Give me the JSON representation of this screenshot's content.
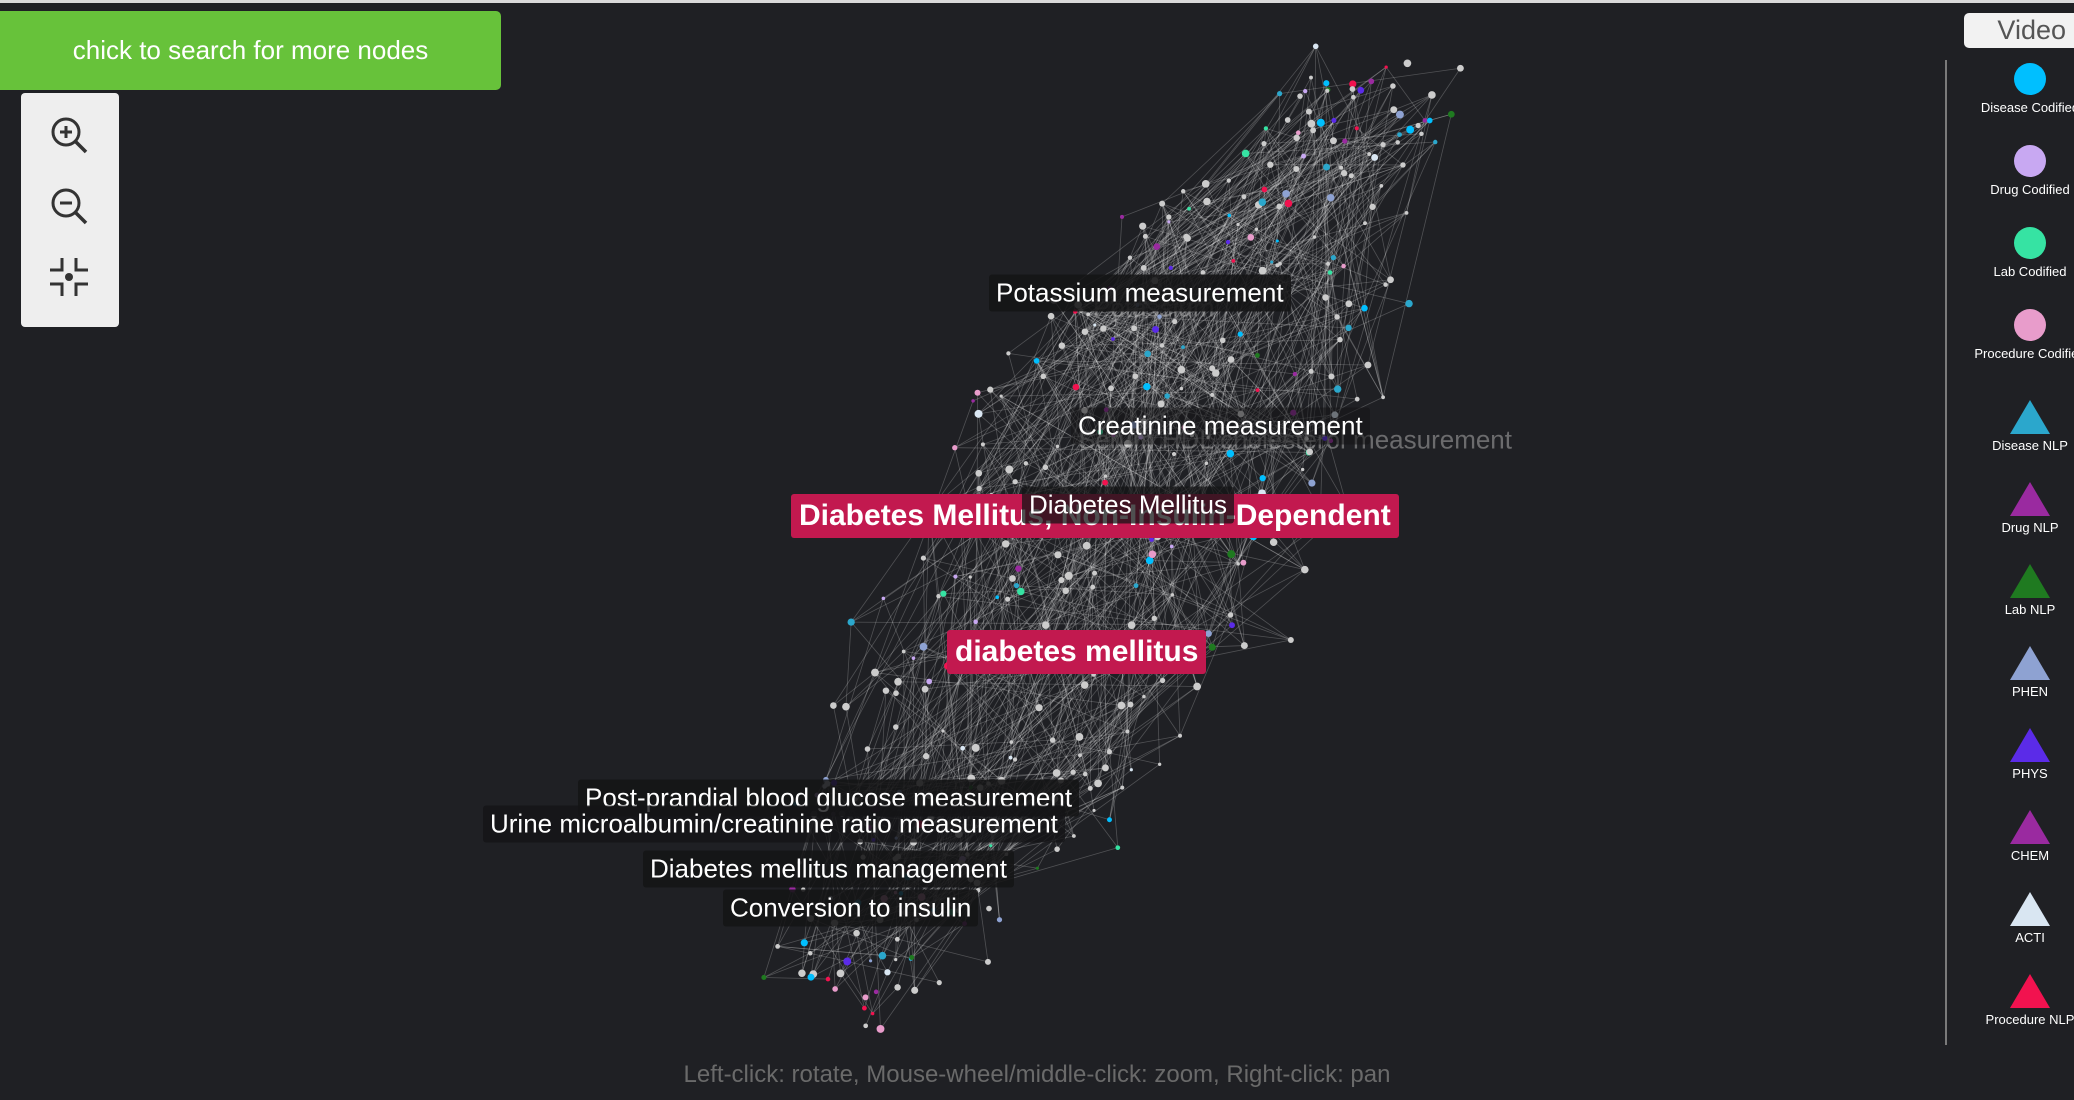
{
  "search_button": "chick to search for more nodes",
  "video_button": "Video",
  "labels": [
    "Potassium",
    "Serum HDL cholesterol measurement",
    "Potassium measurement",
    "Creatinine measurement",
    "Diabetes Mellitus, Non-Insulin-Dependent",
    "Diabetes Mellitus",
    "diabetes mellitus",
    "Post-prandial blood glucose measurement",
    "Urine microalbumin/creatinine ratio measurement",
    "Diabetes mellitus management",
    "Conversion to insulin"
  ],
  "hint": "Left-click: rotate, Mouse-wheel/middle-click: zoom, Right-click: pan",
  "legend": [
    {
      "name": "Disease Codified",
      "color": "#00bfff",
      "shape": "circle"
    },
    {
      "name": "Drug Codified",
      "color": "#c8a8f2",
      "shape": "circle"
    },
    {
      "name": "Lab Codified",
      "color": "#36e3a3",
      "shape": "circle"
    },
    {
      "name": "Procedure Codified",
      "color": "#e89ccb",
      "shape": "circle"
    },
    {
      "name": "Disease NLP",
      "color": "#2ba7cc",
      "shape": "triangle"
    },
    {
      "name": "Drug NLP",
      "color": "#9a2aa0",
      "shape": "triangle"
    },
    {
      "name": "Lab NLP",
      "color": "#1f7a20",
      "shape": "triangle"
    },
    {
      "name": "PHEN",
      "color": "#8ea2d2",
      "shape": "triangle"
    },
    {
      "name": "PHYS",
      "color": "#5b2be8",
      "shape": "triangle"
    },
    {
      "name": "CHEM",
      "color": "#9a2aa0",
      "shape": "triangle"
    },
    {
      "name": "ACTI",
      "color": "#d9e6f2",
      "shape": "triangle"
    },
    {
      "name": "Procedure NLP",
      "color": "#f2124f",
      "shape": "triangle"
    }
  ]
}
